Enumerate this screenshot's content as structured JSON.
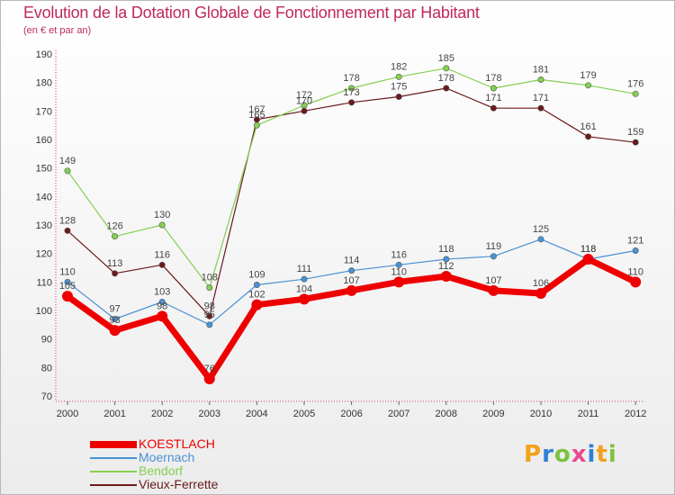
{
  "colors": {
    "title": "#c0285e",
    "axis_text": "#333333",
    "label_text": "#444444"
  },
  "logo": {
    "letters": [
      {
        "ch": "P",
        "color": "#f2a21b"
      },
      {
        "ch": "r",
        "color": "#2f7fd8"
      },
      {
        "ch": "o",
        "color": "#7cc23f"
      },
      {
        "ch": "x",
        "color": "#e94a8f"
      },
      {
        "ch": "i",
        "color": "#2f7fd8"
      },
      {
        "ch": "t",
        "color": "#f2a21b"
      },
      {
        "ch": "i",
        "color": "#7cc23f"
      }
    ]
  },
  "chart_data": {
    "type": "line",
    "title": "Evolution de la Dotation Globale de Fonctionnement par Habitant",
    "subtitle": "(en € et par an)",
    "xlabel": "",
    "ylabel": "",
    "categories": [
      "2000",
      "2001",
      "2002",
      "2003",
      "2004",
      "2005",
      "2006",
      "2007",
      "2008",
      "2009",
      "2010",
      "2011",
      "2012"
    ],
    "ylim": [
      70,
      190
    ],
    "yticks": [
      70,
      80,
      90,
      100,
      110,
      120,
      130,
      140,
      150,
      160,
      170,
      180,
      190
    ],
    "grid": false,
    "legend_position": "bottom-left",
    "series": [
      {
        "name": "Vieux-Ferrette",
        "color": "#6b1a1a",
        "values": [
          128,
          113,
          116,
          98,
          167,
          170,
          173,
          175,
          178,
          171,
          171,
          161,
          159
        ]
      },
      {
        "name": "Bendorf",
        "color": "#84d050",
        "values": [
          149,
          126,
          130,
          108,
          165,
          172,
          178,
          182,
          185,
          178,
          181,
          179,
          176
        ]
      },
      {
        "name": "Moernach",
        "color": "#4a92d4",
        "values": [
          110,
          97,
          103,
          95,
          109,
          111,
          114,
          116,
          118,
          119,
          125,
          118,
          121
        ]
      },
      {
        "name": "KOESTLACH",
        "color": "#ee0000",
        "values": [
          105,
          93,
          98,
          76,
          102,
          104,
          107,
          110,
          112,
          107,
          106,
          118,
          110
        ]
      }
    ]
  }
}
